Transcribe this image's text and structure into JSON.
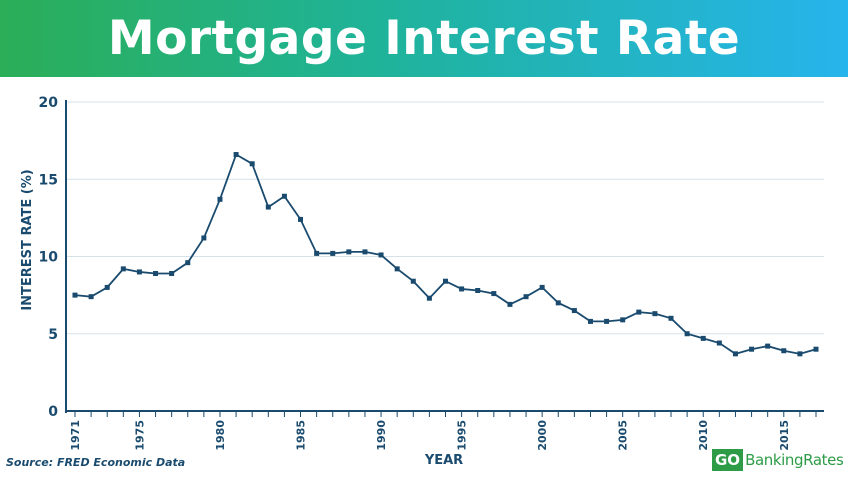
{
  "header": {
    "title": "Mortgage Interest Rate"
  },
  "footer": {
    "source": "Source: FRED Economic Data"
  },
  "logo": {
    "go": "GO",
    "rest": "BankingRates",
    "color": "#2e9c47"
  },
  "chart_data": {
    "type": "line",
    "title": "Mortgage Interest Rate",
    "xlabel": "YEAR",
    "ylabel": "INTEREST RATE (%)",
    "xlim": [
      1971,
      2017
    ],
    "ylim": [
      0,
      20
    ],
    "yticks": [
      0,
      5,
      10,
      15,
      20
    ],
    "xtick_labels": [
      1971,
      1975,
      1980,
      1985,
      1990,
      1995,
      2000,
      2005,
      2010,
      2015
    ],
    "grid": true,
    "line_color": "#1a4b6e",
    "series": [
      {
        "x": [
          1971,
          1972,
          1973,
          1974,
          1975,
          1976,
          1977,
          1978,
          1979,
          1980,
          1981,
          1982,
          1983,
          1984,
          1985,
          1986,
          1987,
          1988,
          1989,
          1990,
          1991,
          1992,
          1993,
          1994,
          1995,
          1996,
          1997,
          1998,
          1999,
          2000,
          2001,
          2002,
          2003,
          2004,
          2005,
          2006,
          2007,
          2008,
          2009,
          2010,
          2011,
          2012,
          2013,
          2014,
          2015,
          2016,
          2017
        ],
        "y": [
          7.5,
          7.4,
          8.0,
          9.2,
          9.0,
          8.9,
          8.9,
          9.6,
          11.2,
          13.7,
          16.6,
          16.0,
          13.2,
          13.9,
          12.4,
          10.2,
          10.2,
          10.3,
          10.3,
          10.1,
          9.2,
          8.4,
          7.3,
          8.4,
          7.9,
          7.8,
          7.6,
          6.9,
          7.4,
          8.0,
          7.0,
          6.5,
          5.8,
          5.8,
          5.9,
          6.4,
          6.3,
          6.0,
          5.0,
          4.7,
          4.4,
          3.7,
          4.0,
          4.2,
          3.9,
          3.7,
          4.0
        ]
      }
    ]
  }
}
